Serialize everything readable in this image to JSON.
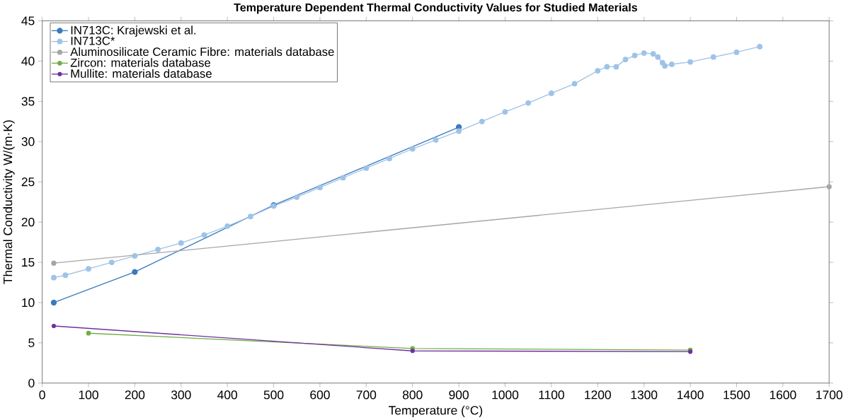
{
  "chart_data": {
    "type": "line",
    "title": "Temperature Dependent Thermal Conductivity Values for Studied Materials",
    "xlabel": "Temperature (°C)",
    "ylabel": "Thermal Conductivity W/(m·K)",
    "xlim": [
      0,
      1700
    ],
    "xticks": [
      0,
      100,
      200,
      300,
      400,
      500,
      600,
      700,
      800,
      900,
      1000,
      1100,
      1200,
      1300,
      1400,
      1500,
      1600,
      1700
    ],
    "ylim": [
      0,
      45
    ],
    "yticks": [
      0,
      5,
      10,
      15,
      20,
      25,
      30,
      35,
      40,
      45
    ],
    "legend": "top left",
    "marker": "circle",
    "grid": false,
    "series": [
      {
        "name": "IN713C: Krajewski et al.",
        "color": "#3a7bbf",
        "x": [
          25,
          200,
          500,
          900
        ],
        "values": [
          10.0,
          13.8,
          22.1,
          31.8
        ]
      },
      {
        "name": "IN713C*",
        "color": "#9fc3e7",
        "x": [
          25,
          50,
          100,
          150,
          200,
          250,
          300,
          350,
          400,
          450,
          500,
          550,
          600,
          650,
          700,
          750,
          800,
          850,
          900,
          950,
          1000,
          1050,
          1100,
          1150,
          1200,
          1220,
          1240,
          1260,
          1280,
          1300,
          1320,
          1330,
          1340,
          1345,
          1360,
          1400,
          1450,
          1500,
          1550
        ],
        "values": [
          13.1,
          13.4,
          14.2,
          15.0,
          15.8,
          16.6,
          17.4,
          18.4,
          19.5,
          20.7,
          22.0,
          23.1,
          24.3,
          25.5,
          26.7,
          27.9,
          29.1,
          30.2,
          31.3,
          32.5,
          33.7,
          34.8,
          36.0,
          37.2,
          38.8,
          39.3,
          39.3,
          40.2,
          40.7,
          41.0,
          40.9,
          40.5,
          39.8,
          39.4,
          39.6,
          39.9,
          40.5,
          41.1,
          41.8
        ]
      },
      {
        "name": "Aluminosilicate Ceramic Fibre: materials database",
        "color": "#a6a6a6",
        "x": [
          25,
          1700
        ],
        "values": [
          14.9,
          24.4
        ]
      },
      {
        "name": "Zircon: materials database",
        "color": "#70ad47",
        "x": [
          100,
          800,
          1400
        ],
        "values": [
          6.2,
          4.3,
          4.1
        ]
      },
      {
        "name": "Mullite: materials database",
        "color": "#7030a0",
        "x": [
          25,
          800,
          1400
        ],
        "values": [
          7.1,
          4.0,
          3.9
        ]
      }
    ]
  }
}
